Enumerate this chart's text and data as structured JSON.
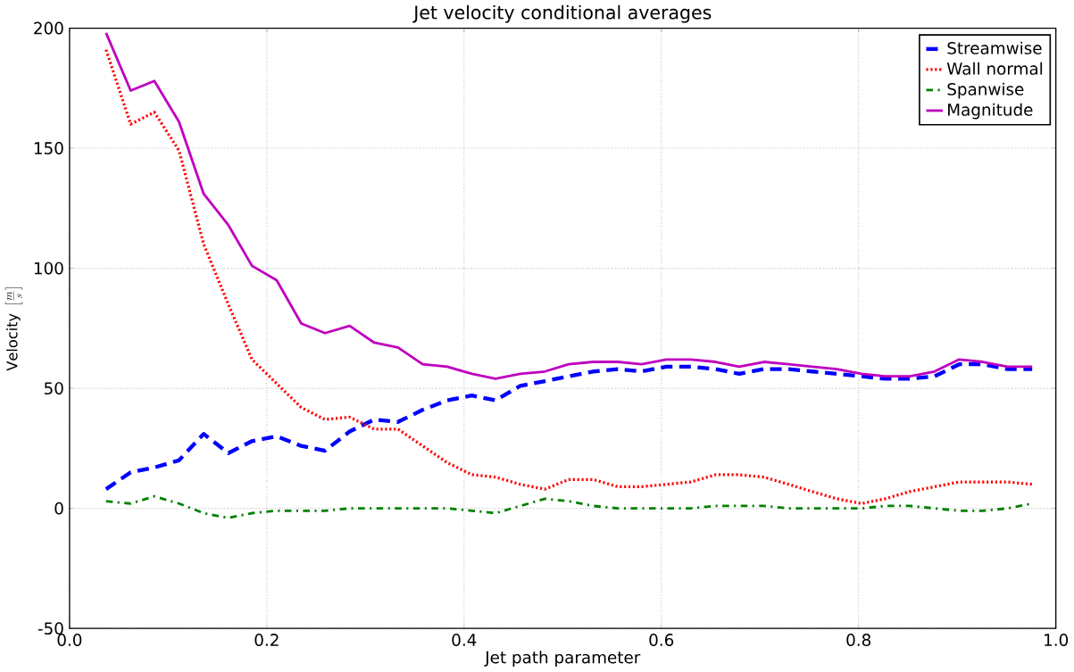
{
  "chart_data": {
    "type": "line",
    "title": "Jet velocity conditional averages",
    "xlabel": "Jet path parameter",
    "ylabel": "\\mathrm{Velocity}\\ \\left[\\frac{m}{s}\\right]",
    "x": [
      0.037,
      0.062,
      0.086,
      0.111,
      0.136,
      0.161,
      0.185,
      0.21,
      0.235,
      0.259,
      0.284,
      0.309,
      0.333,
      0.358,
      0.383,
      0.408,
      0.432,
      0.457,
      0.482,
      0.506,
      0.531,
      0.556,
      0.58,
      0.605,
      0.63,
      0.655,
      0.679,
      0.704,
      0.729,
      0.753,
      0.778,
      0.803,
      0.827,
      0.852,
      0.877,
      0.902,
      0.926,
      0.951,
      0.976
    ],
    "series": [
      {
        "name": "Streamwise",
        "color": "#0000ff",
        "line_style": "dashed",
        "values": [
          8,
          15,
          17,
          20,
          31,
          23,
          28,
          30,
          26,
          24,
          32,
          37,
          36,
          41,
          45,
          47,
          45,
          51,
          53,
          55,
          57,
          58,
          57,
          59,
          59,
          58,
          56,
          58,
          58,
          57,
          56,
          55,
          54,
          54,
          55,
          60,
          60,
          58,
          58
        ]
      },
      {
        "name": "Wall normal",
        "color": "#ff0000",
        "line_style": "dotted",
        "values": [
          191,
          160,
          165,
          149,
          110,
          85,
          62,
          52,
          42,
          37,
          38,
          33,
          33,
          26,
          19,
          14,
          13,
          10,
          8,
          12,
          12,
          9,
          9,
          10,
          11,
          14,
          14,
          13,
          10,
          7,
          4,
          2,
          4,
          7,
          9,
          11,
          11,
          11,
          10
        ]
      },
      {
        "name": "Spanwise",
        "color": "#008000",
        "line_style": "dashdot",
        "values": [
          3,
          2,
          5,
          2,
          -2,
          -4,
          -2,
          -1,
          -1,
          -1,
          0,
          0,
          0,
          0,
          0,
          -1,
          -2,
          1,
          4,
          3,
          1,
          0,
          0,
          0,
          0,
          1,
          1,
          1,
          0,
          0,
          0,
          0,
          1,
          1,
          0,
          -1,
          -1,
          0,
          2
        ]
      },
      {
        "name": "Magnitude",
        "color": "#bf00bf",
        "line_style": "solid",
        "values": [
          198,
          174,
          178,
          161,
          131,
          118,
          101,
          95,
          77,
          73,
          76,
          69,
          67,
          60,
          59,
          56,
          54,
          56,
          57,
          60,
          61,
          61,
          60,
          62,
          62,
          61,
          59,
          61,
          60,
          59,
          58,
          56,
          55,
          55,
          57,
          62,
          61,
          59,
          59
        ]
      }
    ],
    "xlim": [
      0,
      1
    ],
    "xticks": [
      {
        "value": 0,
        "label": "0.0"
      },
      0.2,
      0.4,
      0.6,
      0.8,
      {
        "value": 1,
        "label": "1.0"
      }
    ],
    "ylim": [
      -50,
      200
    ],
    "yticks": [
      -50,
      0,
      50,
      100,
      150,
      200
    ],
    "grid": true,
    "legend": "top right"
  }
}
